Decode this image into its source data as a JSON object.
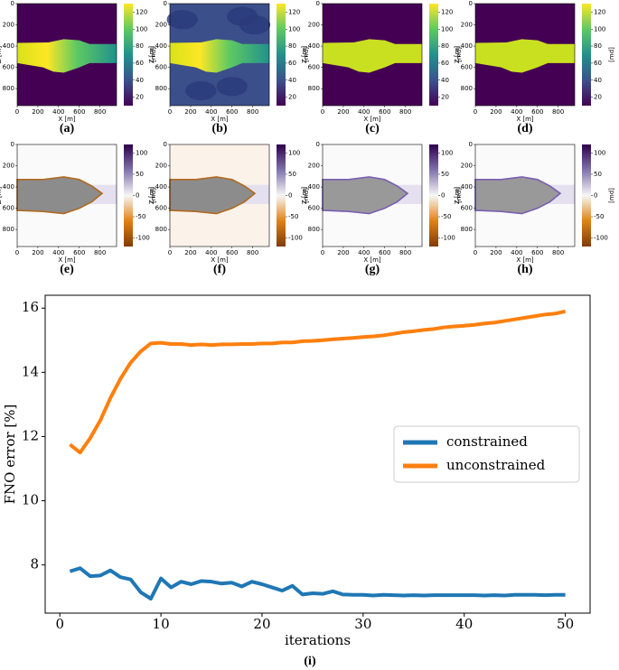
{
  "panel_axes": {
    "xticks": [
      0,
      200,
      400,
      600,
      800
    ],
    "yticks": [
      0,
      200,
      400,
      600,
      800
    ],
    "xlabel": "X [m]",
    "ylabel": "Z [m]"
  },
  "colorbars": {
    "top": {
      "lim": [
        10,
        130
      ],
      "ticks": [
        20,
        40,
        60,
        80,
        100,
        120
      ],
      "label": "[md]"
    },
    "bottom": {
      "lim": [
        -120,
        120
      ],
      "ticks": [
        100,
        50,
        0,
        -50,
        -100
      ],
      "label": "[md]"
    }
  },
  "panels": {
    "top": [
      "(a)",
      "(b)",
      "(c)",
      "(d)"
    ],
    "bottom": [
      "(e)",
      "(f)",
      "(g)",
      "(h)"
    ]
  },
  "chart_data": {
    "type": "line",
    "caption": "(i)",
    "xlabel": "iterations",
    "ylabel": "FNO error [%]",
    "x": [
      1,
      2,
      3,
      4,
      5,
      6,
      7,
      8,
      9,
      10,
      11,
      12,
      13,
      14,
      15,
      16,
      17,
      18,
      19,
      20,
      21,
      22,
      23,
      24,
      25,
      26,
      27,
      28,
      29,
      30,
      31,
      32,
      33,
      34,
      35,
      36,
      37,
      38,
      39,
      40,
      41,
      42,
      43,
      44,
      45,
      46,
      47,
      48,
      49,
      50
    ],
    "xlim": [
      -1.45,
      52.45
    ],
    "xticks": [
      0,
      10,
      20,
      30,
      40,
      50
    ],
    "ylim": [
      6.5,
      16.4
    ],
    "yticks": [
      8,
      10,
      12,
      14,
      16
    ],
    "legend": "center right",
    "series": [
      {
        "name": "constrained",
        "color": "#1f77b4",
        "values": [
          7.8,
          7.9,
          7.65,
          7.67,
          7.83,
          7.62,
          7.55,
          7.15,
          6.95,
          7.58,
          7.3,
          7.48,
          7.4,
          7.5,
          7.48,
          7.42,
          7.45,
          7.33,
          7.48,
          7.4,
          7.3,
          7.2,
          7.35,
          7.08,
          7.12,
          7.1,
          7.18,
          7.08,
          7.07,
          7.07,
          7.05,
          7.07,
          7.06,
          7.05,
          7.06,
          7.05,
          7.06,
          7.06,
          7.06,
          7.06,
          7.06,
          7.05,
          7.06,
          7.05,
          7.07,
          7.07,
          7.07,
          7.06,
          7.07,
          7.07
        ]
      },
      {
        "name": "unconstrained",
        "color": "#ff7f0e",
        "values": [
          11.75,
          11.5,
          11.95,
          12.5,
          13.2,
          13.8,
          14.3,
          14.65,
          14.9,
          14.92,
          14.88,
          14.88,
          14.85,
          14.87,
          14.85,
          14.87,
          14.87,
          14.88,
          14.88,
          14.9,
          14.9,
          14.93,
          14.93,
          14.97,
          14.98,
          15.0,
          15.03,
          15.05,
          15.07,
          15.1,
          15.12,
          15.15,
          15.2,
          15.25,
          15.28,
          15.32,
          15.35,
          15.4,
          15.43,
          15.45,
          15.48,
          15.52,
          15.55,
          15.6,
          15.65,
          15.7,
          15.75,
          15.8,
          15.83,
          15.9
        ]
      }
    ]
  }
}
